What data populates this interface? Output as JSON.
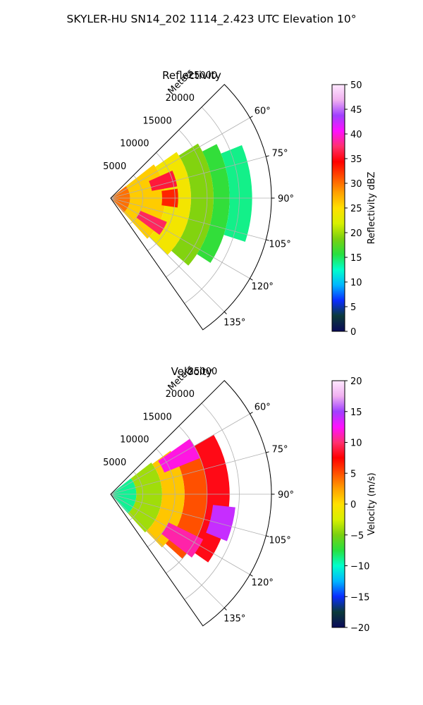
{
  "suptitle": "SKYLER-HU  SN14_202  1114_2.423 UTC Elevation 10°",
  "chart_data": [
    {
      "type": "heatmap",
      "projection": "polar-sector",
      "title": "Reflectivity",
      "r_axis_label": "Meters",
      "r_ticks": [
        5000,
        10000,
        15000,
        20000,
        25000
      ],
      "r_tick_labels": [
        "5000",
        "10000",
        "15000",
        "20000",
        "25000"
      ],
      "r_max": 25000,
      "theta_range_deg": [
        45,
        145
      ],
      "theta_ticks_deg": [
        60,
        75,
        90,
        105,
        120,
        135
      ],
      "theta_tick_labels": [
        "60°",
        "75°",
        "90°",
        "105°",
        "120°",
        "135°"
      ],
      "grid": true,
      "colorbar": {
        "label": "Reflectivity dBZ",
        "range": [
          0,
          50
        ],
        "ticks": [
          0,
          5,
          10,
          15,
          20,
          25,
          30,
          35,
          40,
          45,
          50
        ],
        "tick_labels": [
          "0",
          "5",
          "10",
          "15",
          "20",
          "25",
          "30",
          "35",
          "40",
          "45",
          "50"
        ],
        "stops": [
          "#0a0a5a",
          "#0a3a3a",
          "#0a2cff",
          "#00b6ff",
          "#00ffcc",
          "#28e040",
          "#7ad010",
          "#d8f000",
          "#ffe000",
          "#ffa000",
          "#ff5000",
          "#ff0000",
          "#ff3070",
          "#ff10ff",
          "#a040ff",
          "#f0b0f0",
          "#ffe8ff"
        ]
      },
      "echo_regions": [
        {
          "theta_deg": [
            52,
            138
          ],
          "r": [
            0,
            8500
          ],
          "value": 26
        },
        {
          "theta_deg": [
            55,
            135
          ],
          "r": [
            8500,
            12500
          ],
          "value": 24
        },
        {
          "theta_deg": [
            58,
            131
          ],
          "r": [
            12500,
            16000
          ],
          "value": 19
        },
        {
          "theta_deg": [
            63,
            123
          ],
          "r": [
            16000,
            18500
          ],
          "value": 16
        },
        {
          "theta_deg": [
            68,
            108
          ],
          "r": [
            18500,
            22000
          ],
          "value": 14
        },
        {
          "theta_deg": [
            66,
            80
          ],
          "r": [
            6500,
            10500
          ],
          "value": 36
        },
        {
          "theta_deg": [
            113,
            127
          ],
          "r": [
            5000,
            9500
          ],
          "value": 37
        },
        {
          "theta_deg": [
            82,
            98
          ],
          "r": [
            8000,
            10500
          ],
          "value": 33
        },
        {
          "theta_deg": [
            52,
            138
          ],
          "r": [
            0,
            3000
          ],
          "value": 30
        }
      ]
    },
    {
      "type": "heatmap",
      "projection": "polar-sector",
      "title": "Velocity",
      "r_axis_label": "Meters",
      "r_ticks": [
        5000,
        10000,
        15000,
        20000,
        25000
      ],
      "r_tick_labels": [
        "5000",
        "10000",
        "15000",
        "20000",
        "25000"
      ],
      "r_max": 25000,
      "theta_range_deg": [
        45,
        145
      ],
      "theta_ticks_deg": [
        60,
        75,
        90,
        105,
        120,
        135
      ],
      "theta_tick_labels": [
        "60°",
        "75°",
        "90°",
        "105°",
        "120°",
        "135°"
      ],
      "grid": true,
      "colorbar": {
        "label": "Velocity (m/s)",
        "range": [
          -20,
          20
        ],
        "ticks": [
          -20,
          -15,
          -10,
          -5,
          0,
          5,
          10,
          15,
          20
        ],
        "tick_labels": [
          "−20",
          "−15",
          "−10",
          "−5",
          "0",
          "5",
          "10",
          "15",
          "20"
        ],
        "stops": [
          "#0a0a5a",
          "#0a3a3a",
          "#0a2cff",
          "#00b6ff",
          "#00ffcc",
          "#28e040",
          "#7ad010",
          "#d8f000",
          "#ffe000",
          "#ffa000",
          "#ff5000",
          "#ff0000",
          "#ff3070",
          "#ff10ff",
          "#a040ff",
          "#f0b0f0",
          "#ffe8ff"
        ]
      },
      "echo_regions": [
        {
          "theta_deg": [
            52,
            138
          ],
          "r": [
            0,
            4000
          ],
          "value": -9
        },
        {
          "theta_deg": [
            52,
            138
          ],
          "r": [
            4000,
            8000
          ],
          "value": -4
        },
        {
          "theta_deg": [
            54,
            136
          ],
          "r": [
            8000,
            11500
          ],
          "value": 1
        },
        {
          "theta_deg": [
            56,
            132
          ],
          "r": [
            11500,
            15000
          ],
          "value": 5
        },
        {
          "theta_deg": [
            60,
            125
          ],
          "r": [
            15000,
            18500
          ],
          "value": 8
        },
        {
          "theta_deg": [
            55,
            68
          ],
          "r": [
            9000,
            15000
          ],
          "value": 12
        },
        {
          "theta_deg": [
            96,
            112
          ],
          "r": [
            16000,
            19500
          ],
          "value": 14
        },
        {
          "theta_deg": [
            116,
            128
          ],
          "r": [
            10000,
            16000
          ],
          "value": 11
        }
      ]
    }
  ]
}
